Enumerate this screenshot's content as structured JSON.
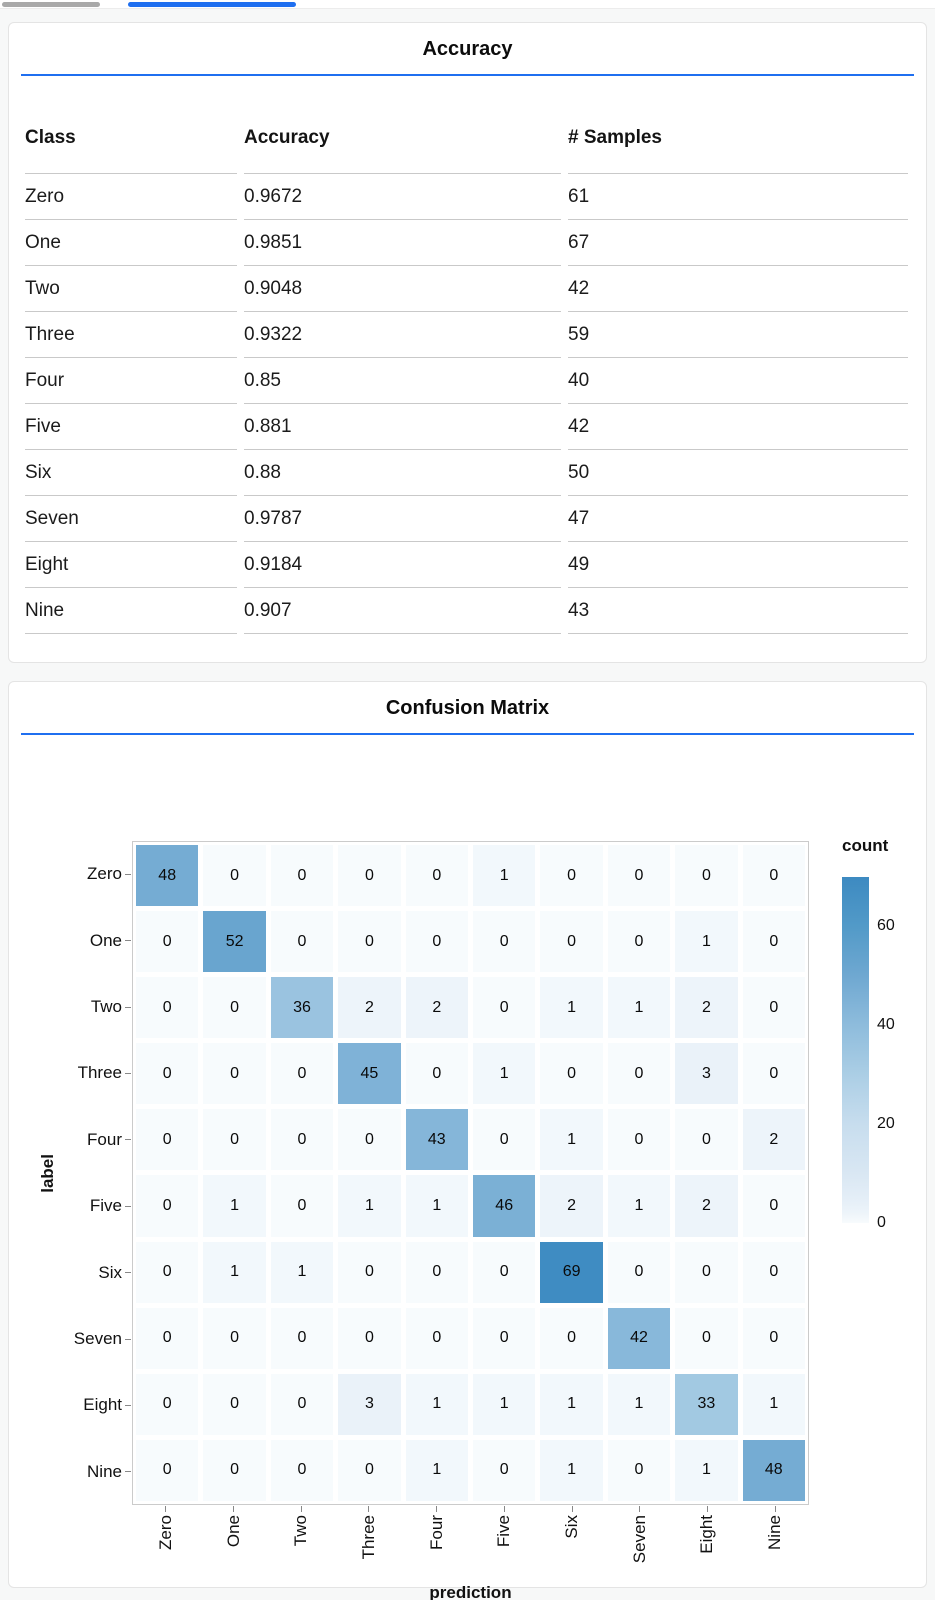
{
  "tabs": {
    "inactive_color": "#a9a9a9",
    "active_color": "#1f6ff0"
  },
  "accent_color": "#1f6ff0",
  "accuracy_panel": {
    "title": "Accuracy",
    "columns": [
      "Class",
      "Accuracy",
      "# Samples"
    ],
    "rows": [
      [
        "Zero",
        "0.9672",
        "61"
      ],
      [
        "One",
        "0.9851",
        "67"
      ],
      [
        "Two",
        "0.9048",
        "42"
      ],
      [
        "Three",
        "0.9322",
        "59"
      ],
      [
        "Four",
        "0.85",
        "40"
      ],
      [
        "Five",
        "0.881",
        "42"
      ],
      [
        "Six",
        "0.88",
        "50"
      ],
      [
        "Seven",
        "0.9787",
        "47"
      ],
      [
        "Eight",
        "0.9184",
        "49"
      ],
      [
        "Nine",
        "0.907",
        "43"
      ]
    ]
  },
  "confusion_panel": {
    "title": "Confusion Matrix",
    "xlabel": "prediction",
    "ylabel": "label",
    "legend_title": "count",
    "legend_ticks": [
      60,
      40,
      20,
      0
    ],
    "legend_domain": [
      0,
      70
    ],
    "labels": [
      "Zero",
      "One",
      "Two",
      "Three",
      "Four",
      "Five",
      "Six",
      "Seven",
      "Eight",
      "Nine"
    ],
    "matrix": [
      [
        48,
        0,
        0,
        0,
        0,
        1,
        0,
        0,
        0,
        0
      ],
      [
        0,
        52,
        0,
        0,
        0,
        0,
        0,
        0,
        1,
        0
      ],
      [
        0,
        0,
        36,
        2,
        2,
        0,
        1,
        1,
        2,
        0
      ],
      [
        0,
        0,
        0,
        45,
        0,
        1,
        0,
        0,
        3,
        0
      ],
      [
        0,
        0,
        0,
        0,
        43,
        0,
        1,
        0,
        0,
        2
      ],
      [
        0,
        1,
        0,
        1,
        1,
        46,
        2,
        1,
        2,
        0
      ],
      [
        0,
        1,
        1,
        0,
        0,
        0,
        69,
        0,
        0,
        0
      ],
      [
        0,
        0,
        0,
        0,
        0,
        0,
        0,
        42,
        0,
        0
      ],
      [
        0,
        0,
        0,
        3,
        1,
        1,
        1,
        1,
        33,
        1
      ],
      [
        0,
        0,
        0,
        0,
        1,
        0,
        1,
        0,
        1,
        48
      ]
    ],
    "color_stops": [
      [
        0,
        "#f7fbfd"
      ],
      [
        2,
        "#edf4fa"
      ],
      [
        5,
        "#e4eef7"
      ],
      [
        10,
        "#d9e7f3"
      ],
      [
        20,
        "#c7ddee"
      ],
      [
        30,
        "#abcee5"
      ],
      [
        40,
        "#8ebcdc"
      ],
      [
        50,
        "#6fa8d1"
      ],
      [
        60,
        "#529ac8"
      ],
      [
        70,
        "#3d8ac1"
      ]
    ]
  },
  "chart_data": [
    {
      "type": "table",
      "title": "Accuracy",
      "columns": [
        "Class",
        "Accuracy",
        "# Samples"
      ],
      "rows": [
        [
          "Zero",
          0.9672,
          61
        ],
        [
          "One",
          0.9851,
          67
        ],
        [
          "Two",
          0.9048,
          42
        ],
        [
          "Three",
          0.9322,
          59
        ],
        [
          "Four",
          0.85,
          40
        ],
        [
          "Five",
          0.881,
          42
        ],
        [
          "Six",
          0.88,
          50
        ],
        [
          "Seven",
          0.9787,
          47
        ],
        [
          "Eight",
          0.9184,
          49
        ],
        [
          "Nine",
          0.907,
          43
        ]
      ]
    },
    {
      "type": "heatmap",
      "title": "Confusion Matrix",
      "xlabel": "prediction",
      "ylabel": "label",
      "x_categories": [
        "Zero",
        "One",
        "Two",
        "Three",
        "Four",
        "Five",
        "Six",
        "Seven",
        "Eight",
        "Nine"
      ],
      "y_categories": [
        "Zero",
        "One",
        "Two",
        "Three",
        "Four",
        "Five",
        "Six",
        "Seven",
        "Eight",
        "Nine"
      ],
      "values": [
        [
          48,
          0,
          0,
          0,
          0,
          1,
          0,
          0,
          0,
          0
        ],
        [
          0,
          52,
          0,
          0,
          0,
          0,
          0,
          0,
          1,
          0
        ],
        [
          0,
          0,
          36,
          2,
          2,
          0,
          1,
          1,
          2,
          0
        ],
        [
          0,
          0,
          0,
          45,
          0,
          1,
          0,
          0,
          3,
          0
        ],
        [
          0,
          0,
          0,
          0,
          43,
          0,
          1,
          0,
          0,
          2
        ],
        [
          0,
          1,
          0,
          1,
          1,
          46,
          2,
          1,
          2,
          0
        ],
        [
          0,
          1,
          1,
          0,
          0,
          0,
          69,
          0,
          0,
          0
        ],
        [
          0,
          0,
          0,
          0,
          0,
          0,
          0,
          42,
          0,
          0
        ],
        [
          0,
          0,
          0,
          3,
          1,
          1,
          1,
          1,
          33,
          1
        ],
        [
          0,
          0,
          0,
          0,
          1,
          0,
          1,
          0,
          1,
          48
        ]
      ],
      "legend_title": "count",
      "legend_ticks": [
        0,
        20,
        40,
        60
      ],
      "color_range_low": "#f7fbfd",
      "color_range_high": "#3d8ac1",
      "grid": false,
      "legend_position": "right"
    }
  ]
}
